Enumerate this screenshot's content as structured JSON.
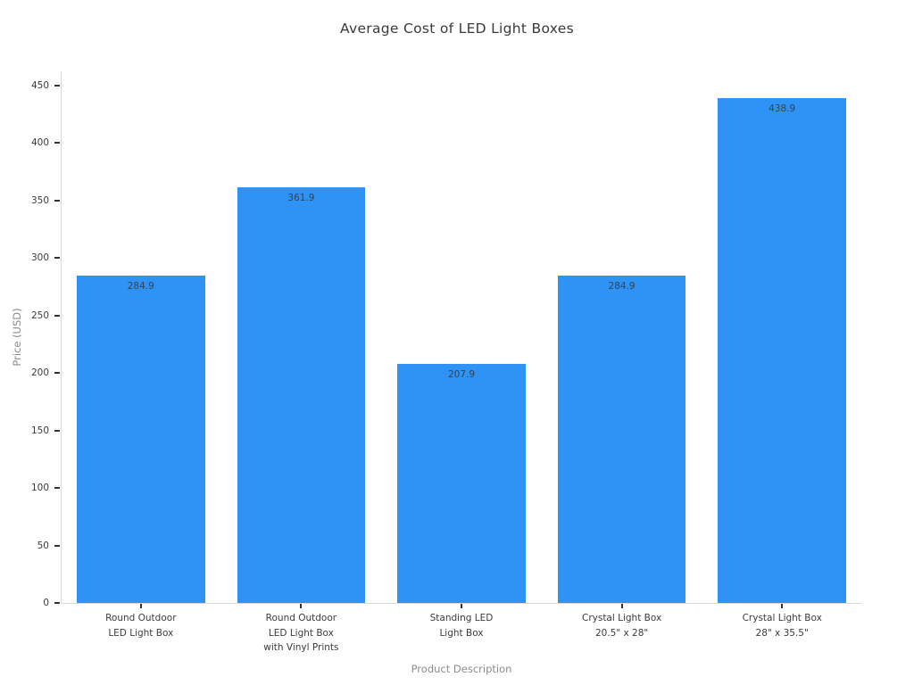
{
  "chart_data": {
    "type": "bar",
    "title": "Average Cost of LED Light Boxes",
    "xlabel": "Product Description",
    "ylabel": "Price (USD)",
    "categories": [
      "Round Outdoor\nLED Light Box",
      "Round Outdoor\nLED Light Box\nwith Vinyl Prints",
      "Standing LED\nLight Box",
      "Crystal Light Box\n20.5\" x 28\"",
      "Crystal Light Box\n28\" x 35.5\""
    ],
    "values": [
      284.9,
      361.9,
      207.9,
      284.9,
      438.9
    ],
    "bar_labels": [
      "284.9",
      "361.9",
      "207.9",
      "284.9",
      "438.9"
    ],
    "yticks": [
      0,
      50,
      100,
      150,
      200,
      250,
      300,
      350,
      400,
      450
    ],
    "ylim": [
      0,
      450
    ],
    "bar_color": "#2e93f5",
    "grid": false,
    "legend_position": "none",
    "value_label_position": "inside-top"
  }
}
